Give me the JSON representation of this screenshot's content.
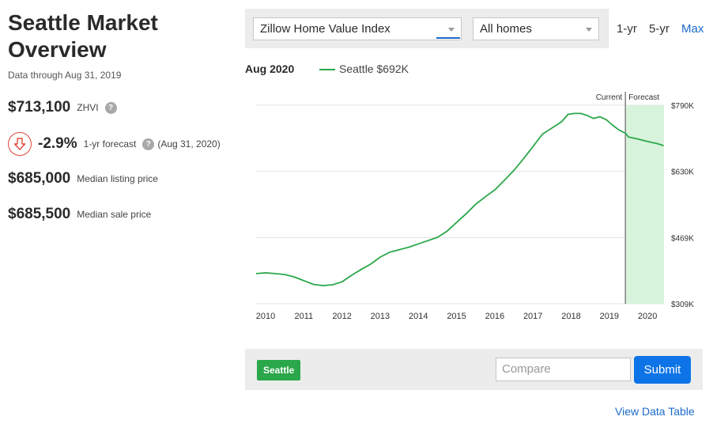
{
  "summary": {
    "title_line1": "Seattle Market",
    "title_line2": "Overview",
    "data_through": "Data through Aug 31, 2019",
    "zhvi_value": "$713,100",
    "zhvi_label": "ZHVI",
    "help_glyph": "?",
    "forecast_value": "-2.9%",
    "forecast_label": "1-yr forecast",
    "forecast_date": "(Aug 31, 2020)",
    "median_listing_value": "$685,000",
    "median_listing_label": "Median listing price",
    "median_sale_value": "$685,500",
    "median_sale_label": "Median sale price",
    "down_arrow_icon": "arrow-down-circle-icon",
    "down_color": "#e0463a"
  },
  "controls": {
    "metric_select": "Zillow Home Value Index",
    "home_type_select": "All homes",
    "range_tabs": [
      "1-yr",
      "5-yr",
      "Max"
    ],
    "active_range": "Max"
  },
  "legend": {
    "date": "Aug 2020",
    "series_label": "Seattle $692K"
  },
  "compare": {
    "chip_label": "Seattle",
    "input_placeholder": "Compare",
    "submit_label": "Submit",
    "view_table_link": "View Data Table"
  },
  "colors": {
    "series": "#2aa74a",
    "forecast_band": "#d8f3dc",
    "accent": "#1b6ac9",
    "button": "#0d74e7"
  },
  "chart_data": {
    "type": "line",
    "series": [
      {
        "name": "Seattle",
        "x": [
          2010.0,
          2010.25,
          2010.5,
          2010.75,
          2011.0,
          2011.25,
          2011.5,
          2011.75,
          2012.0,
          2012.25,
          2012.5,
          2012.75,
          2013.0,
          2013.25,
          2013.5,
          2013.75,
          2014.0,
          2014.25,
          2014.5,
          2014.75,
          2015.0,
          2015.25,
          2015.5,
          2015.75,
          2016.0,
          2016.25,
          2016.5,
          2016.75,
          2017.0,
          2017.25,
          2017.5,
          2017.75,
          2018.0,
          2018.17,
          2018.33,
          2018.5,
          2018.67,
          2018.83,
          2019.0,
          2019.17,
          2019.33,
          2019.5,
          2019.67,
          2019.75,
          2020.0,
          2020.25,
          2020.5,
          2020.67
        ],
        "y": [
          382,
          384,
          382,
          380,
          374,
          365,
          356,
          353,
          355,
          362,
          378,
          392,
          405,
          422,
          434,
          440,
          446,
          454,
          462,
          470,
          485,
          506,
          527,
          550,
          568,
          585,
          608,
          632,
          660,
          690,
          720,
          735,
          750,
          768,
          770,
          770,
          765,
          758,
          762,
          755,
          742,
          730,
          722,
          713,
          708,
          702,
          697,
          692
        ]
      }
    ],
    "xlabel": "",
    "ylabel": "",
    "x_ticks": [
      "2010",
      "2011",
      "2012",
      "2013",
      "2014",
      "2015",
      "2016",
      "2017",
      "2018",
      "2019",
      "2020"
    ],
    "x_tick_values": [
      2010,
      2011,
      2012,
      2013,
      2014,
      2015,
      2016,
      2017,
      2018,
      2019,
      2020
    ],
    "y_ticks": [
      "$309K",
      "$469K",
      "$630K",
      "$790K"
    ],
    "y_tick_values": [
      309,
      469,
      630,
      790
    ],
    "xlim": [
      2009.98,
      2020.68
    ],
    "ylim": [
      309,
      790
    ],
    "current_label": "Current",
    "forecast_label": "Forecast",
    "current_x": 2019.67,
    "grid": "horizontal"
  }
}
